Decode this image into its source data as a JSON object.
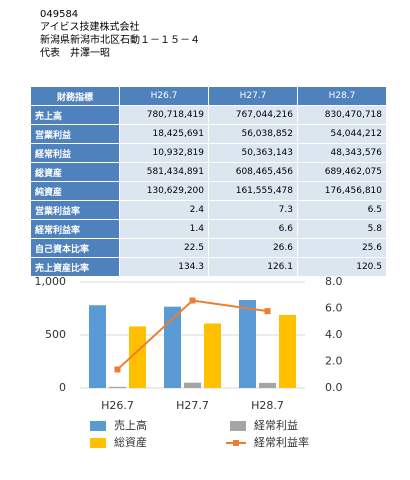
{
  "header": {
    "code": "049584",
    "company": "アイビス技建株式会社",
    "address": "新潟県新潟市北区石動１－１５－４",
    "representative": "代表　井澤一昭"
  },
  "table": {
    "columns": [
      "財務指標",
      "H26.7",
      "H27.7",
      "H28.7"
    ],
    "rows": [
      [
        "売上高",
        "780,718,419",
        "767,044,216",
        "830,470,718"
      ],
      [
        "営業利益",
        "18,425,691",
        "56,038,852",
        "54,044,212"
      ],
      [
        "経常利益",
        "10,932,819",
        "50,363,143",
        "48,343,576"
      ],
      [
        "総資産",
        "581,434,891",
        "608,465,456",
        "689,462,075"
      ],
      [
        "純資産",
        "130,629,200",
        "161,555,478",
        "176,456,810"
      ],
      [
        "営業利益率",
        "2.4",
        "7.3",
        "6.5"
      ],
      [
        "経常利益率",
        "1.4",
        "6.6",
        "5.8"
      ],
      [
        "自己資本比率",
        "22.5",
        "26.6",
        "25.6"
      ],
      [
        "売上資産比率",
        "134.3",
        "126.1",
        "120.5"
      ]
    ]
  },
  "chart_data": {
    "type": "bar",
    "categories": [
      "H26.7",
      "H27.7",
      "H28.7"
    ],
    "series": [
      {
        "name": "売上高",
        "color": "#5b9bd5",
        "values": [
          780.7,
          767.0,
          830.5
        ]
      },
      {
        "name": "経常利益",
        "color": "#a5a5a5",
        "values": [
          10.9,
          50.4,
          48.3
        ]
      },
      {
        "name": "総資産",
        "color": "#ffc000",
        "values": [
          581.4,
          608.5,
          689.5
        ]
      },
      {
        "name": "経常利益率",
        "color": "#ed7d31",
        "values": [
          1.4,
          6.6,
          5.8
        ],
        "axis": "y2",
        "type": "line"
      }
    ],
    "ylim": [
      0,
      1000
    ],
    "yticks": [
      0,
      500,
      {
        "value": 1000,
        "label": "1,000"
      }
    ],
    "y2lim": [
      0,
      8
    ],
    "y2ticks": [
      {
        "value": 0,
        "label": "0.0"
      },
      {
        "value": 2,
        "label": "2.0"
      },
      {
        "value": 4,
        "label": "4.0"
      },
      {
        "value": 6,
        "label": "6.0"
      },
      {
        "value": 8,
        "label": "8.0"
      }
    ],
    "grid": true
  }
}
